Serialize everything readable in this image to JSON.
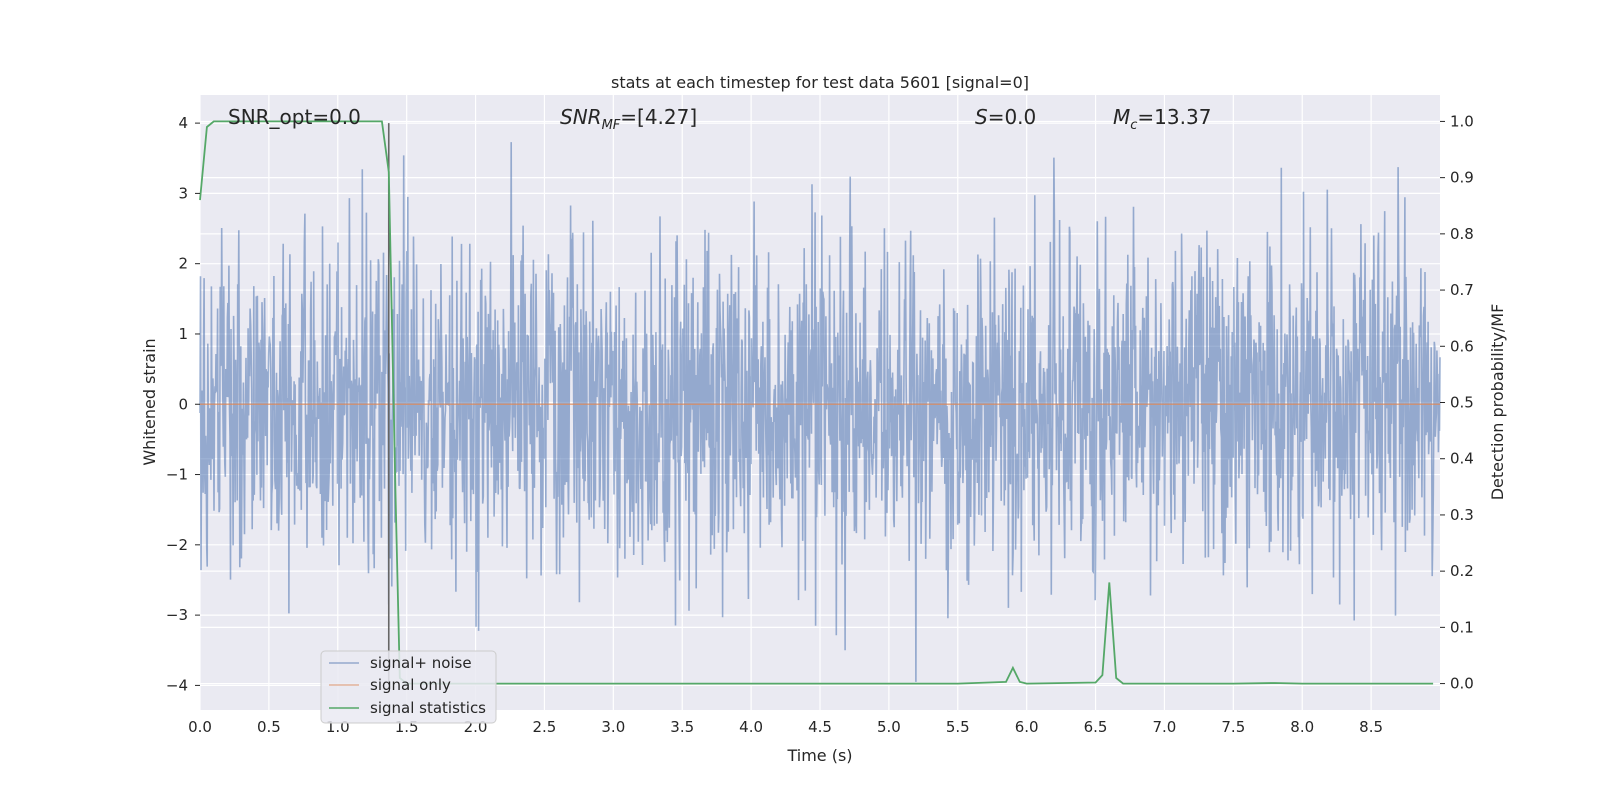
{
  "chart_data": {
    "type": "line",
    "title": "stats at each timestep for test data 5601 [signal=0]",
    "xlabel": "Time (s)",
    "ylabel_left": "Whitened strain",
    "ylabel_right": "Detection probability/MF",
    "xlim": [
      0.0,
      9.0
    ],
    "ylim_left": [
      -4.35,
      4.4
    ],
    "ylim_right": [
      -0.047,
      1.047
    ],
    "x_ticks": [
      "0.0",
      "0.5",
      "1.0",
      "1.5",
      "2.0",
      "2.5",
      "3.0",
      "3.5",
      "4.0",
      "4.5",
      "5.0",
      "5.5",
      "6.0",
      "6.5",
      "7.0",
      "7.5",
      "8.0",
      "8.5"
    ],
    "y_ticks_left": [
      "−4",
      "−3",
      "−2",
      "−1",
      "0",
      "1",
      "2",
      "3",
      "4"
    ],
    "y_ticks_right": [
      "0.0",
      "0.1",
      "0.2",
      "0.3",
      "0.4",
      "0.5",
      "0.6",
      "0.7",
      "0.8",
      "0.9",
      "1.0"
    ],
    "grid": true,
    "legend_position": "lower-left",
    "annotations": [
      {
        "label": "SNR_opt=0.0"
      },
      {
        "label": "SNR_MF=[4.27]"
      },
      {
        "label": "S=0.0"
      },
      {
        "label": "M_c=13.37"
      }
    ],
    "marker_x": 1.37,
    "series": [
      {
        "name": "signal+ noise",
        "axis": "left",
        "color": "#4c72b0",
        "description_value_range": [
          -4.0,
          4.0
        ],
        "typical_amplitude": 1.6
      },
      {
        "name": "signal only",
        "axis": "left",
        "color": "#dd8452",
        "x": [
          0.0,
          9.0
        ],
        "y": [
          0.0,
          0.0
        ]
      },
      {
        "name": "signal statistics",
        "axis": "right",
        "color": "#55a868",
        "x": [
          0.0,
          0.05,
          0.1,
          0.2,
          0.4,
          0.6,
          0.8,
          1.0,
          1.2,
          1.32,
          1.37,
          1.42,
          1.45,
          1.5,
          2.0,
          3.0,
          4.0,
          5.0,
          5.5,
          5.85,
          5.9,
          5.95,
          6.0,
          6.5,
          6.55,
          6.6,
          6.65,
          6.7,
          6.75,
          7.0,
          7.5,
          7.8,
          8.0,
          8.5,
          8.95
        ],
        "y": [
          0.86,
          0.99,
          1.0,
          1.0,
          1.0,
          1.0,
          1.0,
          1.0,
          1.0,
          1.0,
          0.91,
          0.33,
          0.01,
          0.0,
          0.0,
          0.0,
          0.0,
          0.0,
          0.0,
          0.003,
          0.028,
          0.003,
          0.0,
          0.002,
          0.015,
          0.18,
          0.01,
          0.0,
          0.0,
          0.0,
          0.0,
          0.001,
          0.0,
          0.0,
          0.0
        ]
      }
    ]
  }
}
